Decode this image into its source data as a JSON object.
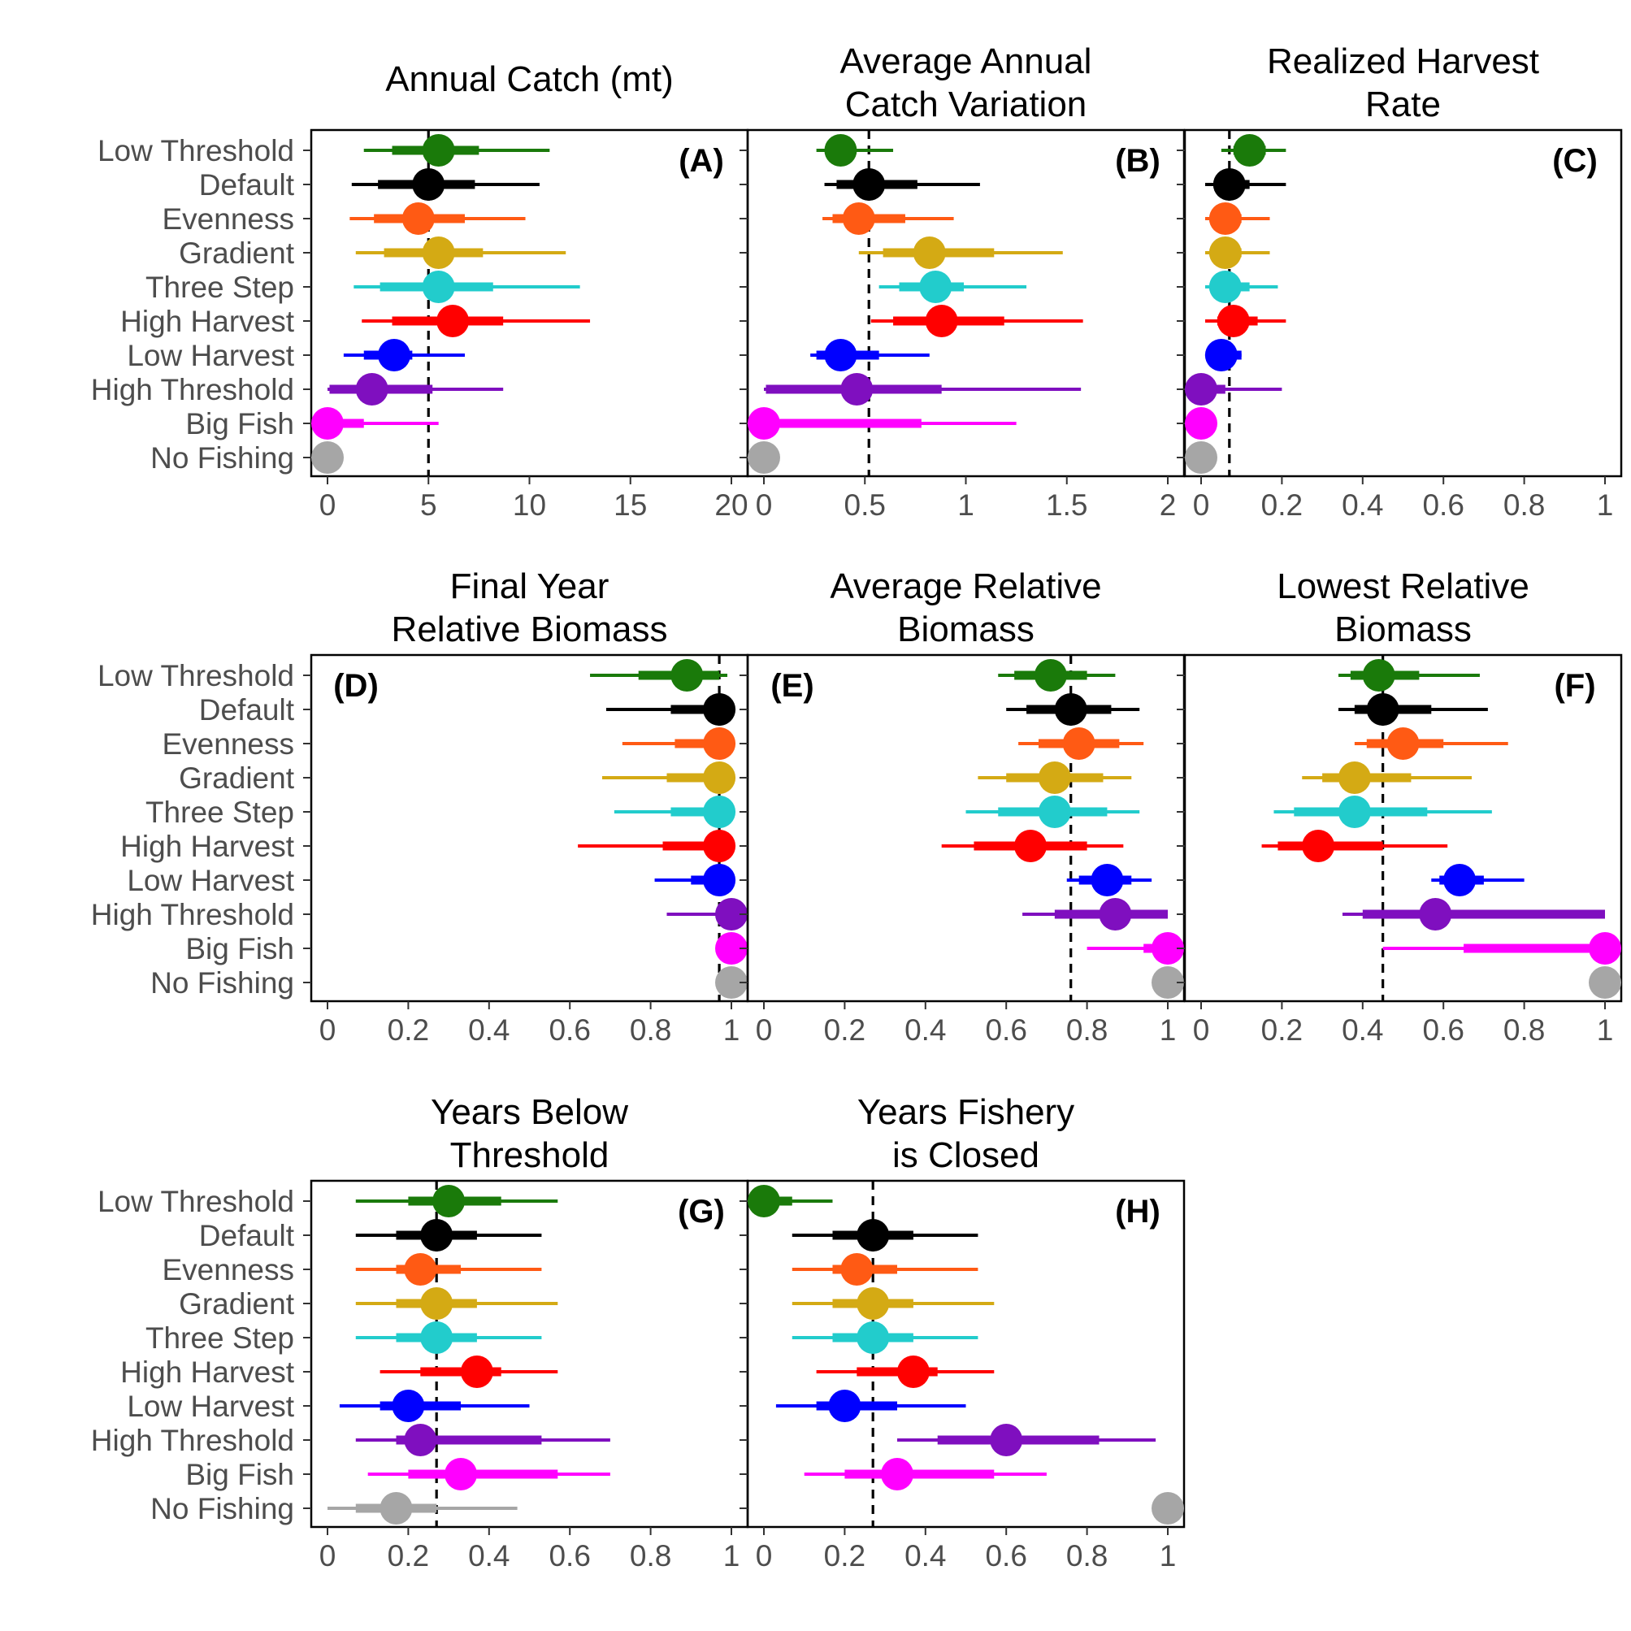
{
  "chart_data": {
    "type": "forest",
    "scenarios": [
      "Low Threshold",
      "Default",
      "Evenness",
      "Gradient",
      "Three Step",
      "High Harvest",
      "Low Harvest",
      "High Threshold",
      "Big Fish",
      "No Fishing"
    ],
    "colors": {
      "Low Threshold": "#1a7a0a",
      "Default": "#000000",
      "Evenness": "#ff5a14",
      "Gradient": "#d4aa14",
      "Three Step": "#22cccc",
      "High Harvest": "#ff0000",
      "Low Harvest": "#0000ff",
      "High Threshold": "#7f0fbf",
      "Big Fish": "#ff00ff",
      "No Fishing": "#a6a6a6"
    },
    "panels": [
      {
        "label": "(A)",
        "title": [
          "Annual Catch (mt)"
        ],
        "label_pos": "right",
        "xlim": [
          0,
          20
        ],
        "ticks": [
          0,
          5,
          10,
          15,
          20
        ],
        "tick_labels": [
          "0",
          "5",
          "10",
          "15",
          "20"
        ],
        "reference": 5,
        "rows": [
          {
            "med": 5.5,
            "q25": 3.2,
            "q75": 7.5,
            "lo": 1.8,
            "hi": 11.0
          },
          {
            "med": 5.0,
            "q25": 2.5,
            "q75": 7.3,
            "lo": 1.2,
            "hi": 10.5
          },
          {
            "med": 4.5,
            "q25": 2.3,
            "q75": 6.8,
            "lo": 1.1,
            "hi": 9.8
          },
          {
            "med": 5.5,
            "q25": 2.8,
            "q75": 7.7,
            "lo": 1.4,
            "hi": 11.8
          },
          {
            "med": 5.5,
            "q25": 2.6,
            "q75": 8.2,
            "lo": 1.3,
            "hi": 12.5
          },
          {
            "med": 6.2,
            "q25": 3.2,
            "q75": 8.7,
            "lo": 1.7,
            "hi": 13.0
          },
          {
            "med": 3.3,
            "q25": 1.8,
            "q75": 4.2,
            "lo": 0.8,
            "hi": 6.8
          },
          {
            "med": 2.2,
            "q25": 0.1,
            "q75": 5.2,
            "lo": 0.0,
            "hi": 8.7
          },
          {
            "med": 0.0,
            "q25": 0.0,
            "q75": 1.8,
            "lo": 0.0,
            "hi": 5.5
          },
          {
            "med": 0.0,
            "q25": 0.0,
            "q75": 0.0,
            "lo": 0.0,
            "hi": 0.0
          }
        ]
      },
      {
        "label": "(B)",
        "title": [
          "Average Annual",
          "Catch Variation"
        ],
        "label_pos": "right",
        "xlim": [
          0,
          2
        ],
        "ticks": [
          0,
          0.5,
          1,
          1.5,
          2
        ],
        "tick_labels": [
          "0",
          "0.5",
          "1",
          "1.5",
          "2"
        ],
        "reference": 0.52,
        "rows": [
          {
            "med": 0.38,
            "q25": 0.33,
            "q75": 0.45,
            "lo": 0.26,
            "hi": 0.64
          },
          {
            "med": 0.52,
            "q25": 0.36,
            "q75": 0.76,
            "lo": 0.3,
            "hi": 1.07
          },
          {
            "med": 0.47,
            "q25": 0.34,
            "q75": 0.7,
            "lo": 0.29,
            "hi": 0.94
          },
          {
            "med": 0.82,
            "q25": 0.59,
            "q75": 1.14,
            "lo": 0.47,
            "hi": 1.48
          },
          {
            "med": 0.85,
            "q25": 0.67,
            "q75": 0.99,
            "lo": 0.57,
            "hi": 1.3
          },
          {
            "med": 0.88,
            "q25": 0.64,
            "q75": 1.19,
            "lo": 0.53,
            "hi": 1.58
          },
          {
            "med": 0.38,
            "q25": 0.26,
            "q75": 0.57,
            "lo": 0.23,
            "hi": 0.82
          },
          {
            "med": 0.46,
            "q25": 0.01,
            "q75": 0.88,
            "lo": 0.0,
            "hi": 1.57
          },
          {
            "med": 0.0,
            "q25": 0.0,
            "q75": 0.78,
            "lo": 0.0,
            "hi": 1.25
          },
          {
            "med": 0.0,
            "q25": 0.0,
            "q75": 0.0,
            "lo": 0.0,
            "hi": 0.0
          }
        ]
      },
      {
        "label": "(C)",
        "title": [
          "Realized Harvest",
          "Rate"
        ],
        "label_pos": "right",
        "xlim": [
          0,
          1
        ],
        "ticks": [
          0,
          0.2,
          0.4,
          0.6,
          0.8,
          1
        ],
        "tick_labels": [
          "0",
          "0.2",
          "0.4",
          "0.6",
          "0.8",
          "1"
        ],
        "reference": 0.07,
        "rows": [
          {
            "med": 0.12,
            "q25": 0.08,
            "q75": 0.16,
            "lo": 0.05,
            "hi": 0.21
          },
          {
            "med": 0.07,
            "q25": 0.04,
            "q75": 0.12,
            "lo": 0.01,
            "hi": 0.21
          },
          {
            "med": 0.06,
            "q25": 0.03,
            "q75": 0.1,
            "lo": 0.01,
            "hi": 0.17
          },
          {
            "med": 0.06,
            "q25": 0.03,
            "q75": 0.1,
            "lo": 0.01,
            "hi": 0.17
          },
          {
            "med": 0.06,
            "q25": 0.03,
            "q75": 0.12,
            "lo": 0.01,
            "hi": 0.19
          },
          {
            "med": 0.08,
            "q25": 0.04,
            "q75": 0.14,
            "lo": 0.01,
            "hi": 0.21
          },
          {
            "med": 0.05,
            "q25": 0.02,
            "q75": 0.1,
            "lo": 0.01,
            "hi": 0.1
          },
          {
            "med": 0.0,
            "q25": 0.0,
            "q75": 0.06,
            "lo": 0.0,
            "hi": 0.2
          },
          {
            "med": 0.0,
            "q25": 0.0,
            "q75": 0.0,
            "lo": 0.0,
            "hi": 0.0
          },
          {
            "med": 0.0,
            "q25": 0.0,
            "q75": 0.0,
            "lo": 0.0,
            "hi": 0.0
          }
        ]
      },
      {
        "label": "(D)",
        "title": [
          "Final Year",
          "Relative Biomass"
        ],
        "label_pos": "left",
        "xlim": [
          0,
          1
        ],
        "ticks": [
          0,
          0.2,
          0.4,
          0.6,
          0.8,
          1
        ],
        "tick_labels": [
          "0",
          "0.2",
          "0.4",
          "0.6",
          "0.8",
          "1"
        ],
        "reference": 0.97,
        "rows": [
          {
            "med": 0.89,
            "q25": 0.77,
            "q75": 0.97,
            "lo": 0.65,
            "hi": 0.99
          },
          {
            "med": 0.97,
            "q25": 0.85,
            "q75": 0.99,
            "lo": 0.69,
            "hi": 1.0
          },
          {
            "med": 0.97,
            "q25": 0.86,
            "q75": 0.99,
            "lo": 0.73,
            "hi": 1.0
          },
          {
            "med": 0.97,
            "q25": 0.84,
            "q75": 0.99,
            "lo": 0.68,
            "hi": 1.0
          },
          {
            "med": 0.97,
            "q25": 0.85,
            "q75": 0.99,
            "lo": 0.71,
            "hi": 1.0
          },
          {
            "med": 0.97,
            "q25": 0.83,
            "q75": 0.99,
            "lo": 0.62,
            "hi": 1.0
          },
          {
            "med": 0.97,
            "q25": 0.9,
            "q75": 0.99,
            "lo": 0.81,
            "hi": 1.0
          },
          {
            "med": 1.0,
            "q25": 0.97,
            "q75": 1.0,
            "lo": 0.84,
            "hi": 1.0
          },
          {
            "med": 1.0,
            "q25": 1.0,
            "q75": 1.0,
            "lo": 1.0,
            "hi": 1.0
          },
          {
            "med": 1.0,
            "q25": 1.0,
            "q75": 1.0,
            "lo": 1.0,
            "hi": 1.0
          }
        ]
      },
      {
        "label": "(E)",
        "title": [
          "Average Relative",
          "Biomass"
        ],
        "label_pos": "left",
        "xlim": [
          0,
          1
        ],
        "ticks": [
          0,
          0.2,
          0.4,
          0.6,
          0.8,
          1
        ],
        "tick_labels": [
          "0",
          "0.2",
          "0.4",
          "0.6",
          "0.8",
          "1"
        ],
        "reference": 0.76,
        "rows": [
          {
            "med": 0.71,
            "q25": 0.62,
            "q75": 0.8,
            "lo": 0.58,
            "hi": 0.87
          },
          {
            "med": 0.76,
            "q25": 0.65,
            "q75": 0.86,
            "lo": 0.6,
            "hi": 0.93
          },
          {
            "med": 0.78,
            "q25": 0.68,
            "q75": 0.88,
            "lo": 0.63,
            "hi": 0.94
          },
          {
            "med": 0.72,
            "q25": 0.6,
            "q75": 0.84,
            "lo": 0.53,
            "hi": 0.91
          },
          {
            "med": 0.72,
            "q25": 0.58,
            "q75": 0.85,
            "lo": 0.5,
            "hi": 0.93
          },
          {
            "med": 0.66,
            "q25": 0.52,
            "q75": 0.8,
            "lo": 0.44,
            "hi": 0.89
          },
          {
            "med": 0.85,
            "q25": 0.78,
            "q75": 0.91,
            "lo": 0.75,
            "hi": 0.96
          },
          {
            "med": 0.87,
            "q25": 0.72,
            "q75": 1.0,
            "lo": 0.64,
            "hi": 1.0
          },
          {
            "med": 1.0,
            "q25": 0.94,
            "q75": 1.0,
            "lo": 0.8,
            "hi": 1.0
          },
          {
            "med": 1.0,
            "q25": 1.0,
            "q75": 1.0,
            "lo": 1.0,
            "hi": 1.0
          }
        ]
      },
      {
        "label": "(F)",
        "title": [
          "Lowest Relative",
          "Biomass"
        ],
        "label_pos": "right",
        "xlim": [
          0,
          1
        ],
        "ticks": [
          0,
          0.2,
          0.4,
          0.6,
          0.8,
          1
        ],
        "tick_labels": [
          "0",
          "0.2",
          "0.4",
          "0.6",
          "0.8",
          "1"
        ],
        "reference": 0.45,
        "rows": [
          {
            "med": 0.44,
            "q25": 0.37,
            "q75": 0.54,
            "lo": 0.34,
            "hi": 0.69
          },
          {
            "med": 0.45,
            "q25": 0.38,
            "q75": 0.57,
            "lo": 0.34,
            "hi": 0.71
          },
          {
            "med": 0.5,
            "q25": 0.41,
            "q75": 0.6,
            "lo": 0.38,
            "hi": 0.76
          },
          {
            "med": 0.38,
            "q25": 0.3,
            "q75": 0.52,
            "lo": 0.25,
            "hi": 0.67
          },
          {
            "med": 0.38,
            "q25": 0.23,
            "q75": 0.56,
            "lo": 0.18,
            "hi": 0.72
          },
          {
            "med": 0.29,
            "q25": 0.19,
            "q75": 0.45,
            "lo": 0.15,
            "hi": 0.61
          },
          {
            "med": 0.64,
            "q25": 0.59,
            "q75": 0.7,
            "lo": 0.57,
            "hi": 0.8
          },
          {
            "med": 0.58,
            "q25": 0.4,
            "q75": 1.0,
            "lo": 0.35,
            "hi": 1.0
          },
          {
            "med": 1.0,
            "q25": 0.65,
            "q75": 1.0,
            "lo": 0.45,
            "hi": 1.0
          },
          {
            "med": 1.0,
            "q25": 1.0,
            "q75": 1.0,
            "lo": 1.0,
            "hi": 1.0
          }
        ]
      },
      {
        "label": "(G)",
        "title": [
          "Years Below",
          "Threshold"
        ],
        "label_pos": "right",
        "xlim": [
          0,
          1
        ],
        "ticks": [
          0,
          0.2,
          0.4,
          0.6,
          0.8,
          1
        ],
        "tick_labels": [
          "0",
          "0.2",
          "0.4",
          "0.6",
          "0.8",
          "1"
        ],
        "reference": 0.27,
        "rows": [
          {
            "med": 0.3,
            "q25": 0.2,
            "q75": 0.43,
            "lo": 0.07,
            "hi": 0.57
          },
          {
            "med": 0.27,
            "q25": 0.17,
            "q75": 0.37,
            "lo": 0.07,
            "hi": 0.53
          },
          {
            "med": 0.23,
            "q25": 0.17,
            "q75": 0.33,
            "lo": 0.07,
            "hi": 0.53
          },
          {
            "med": 0.27,
            "q25": 0.17,
            "q75": 0.37,
            "lo": 0.07,
            "hi": 0.57
          },
          {
            "med": 0.27,
            "q25": 0.17,
            "q75": 0.37,
            "lo": 0.07,
            "hi": 0.53
          },
          {
            "med": 0.37,
            "q25": 0.23,
            "q75": 0.43,
            "lo": 0.13,
            "hi": 0.57
          },
          {
            "med": 0.2,
            "q25": 0.13,
            "q75": 0.33,
            "lo": 0.03,
            "hi": 0.5
          },
          {
            "med": 0.23,
            "q25": 0.17,
            "q75": 0.53,
            "lo": 0.07,
            "hi": 0.7
          },
          {
            "med": 0.33,
            "q25": 0.2,
            "q75": 0.57,
            "lo": 0.1,
            "hi": 0.7
          },
          {
            "med": 0.17,
            "q25": 0.07,
            "q75": 0.27,
            "lo": 0.0,
            "hi": 0.47
          }
        ]
      },
      {
        "label": "(H)",
        "title": [
          "Years Fishery",
          "is Closed"
        ],
        "label_pos": "right",
        "xlim": [
          0,
          1
        ],
        "ticks": [
          0,
          0.2,
          0.4,
          0.6,
          0.8,
          1
        ],
        "tick_labels": [
          "0",
          "0.2",
          "0.4",
          "0.6",
          "0.8",
          "1"
        ],
        "reference": 0.27,
        "rows": [
          {
            "med": 0.0,
            "q25": 0.0,
            "q75": 0.07,
            "lo": 0.0,
            "hi": 0.17
          },
          {
            "med": 0.27,
            "q25": 0.17,
            "q75": 0.37,
            "lo": 0.07,
            "hi": 0.53
          },
          {
            "med": 0.23,
            "q25": 0.17,
            "q75": 0.33,
            "lo": 0.07,
            "hi": 0.53
          },
          {
            "med": 0.27,
            "q25": 0.17,
            "q75": 0.37,
            "lo": 0.07,
            "hi": 0.57
          },
          {
            "med": 0.27,
            "q25": 0.17,
            "q75": 0.37,
            "lo": 0.07,
            "hi": 0.53
          },
          {
            "med": 0.37,
            "q25": 0.23,
            "q75": 0.43,
            "lo": 0.13,
            "hi": 0.57
          },
          {
            "med": 0.2,
            "q25": 0.13,
            "q75": 0.33,
            "lo": 0.03,
            "hi": 0.5
          },
          {
            "med": 0.6,
            "q25": 0.43,
            "q75": 0.83,
            "lo": 0.33,
            "hi": 0.97
          },
          {
            "med": 0.33,
            "q25": 0.2,
            "q75": 0.57,
            "lo": 0.1,
            "hi": 0.7
          },
          {
            "med": 1.0,
            "q25": 1.0,
            "q75": 1.0,
            "lo": 1.0,
            "hi": 1.0
          }
        ]
      }
    ]
  }
}
